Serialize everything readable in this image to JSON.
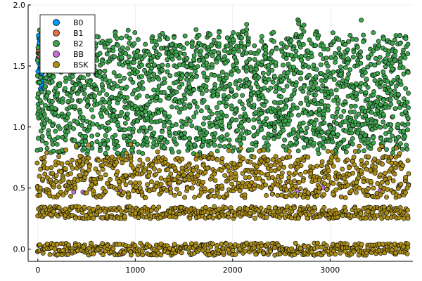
{
  "chart_data": {
    "type": "scatter",
    "title": "",
    "xlabel": "",
    "ylabel": "",
    "xlim": [
      -100,
      3850
    ],
    "ylim": [
      -0.1,
      2.0
    ],
    "xticks": [
      0,
      1000,
      2000,
      3000
    ],
    "xtick_labels": [
      "0",
      "1000",
      "2000",
      "3000"
    ],
    "yticks": [
      0.0,
      0.5,
      1.0,
      1.5,
      2.0
    ],
    "ytick_labels": [
      "0.0",
      "0.5",
      "1.0",
      "1.5",
      "2.0"
    ],
    "grid": true,
    "legend_position": "top-left",
    "x_range": [
      0,
      3800
    ],
    "series": [
      {
        "name": "B0",
        "color": "#009af9",
        "value_range": [
          1.3,
          1.8
        ]
      },
      {
        "name": "B1",
        "color": "#e26f46",
        "value_range": [
          1.55,
          1.65
        ]
      },
      {
        "name": "B2",
        "color": "#3da44d",
        "value_range": [
          0.7,
          1.95
        ]
      },
      {
        "name": "BB",
        "color": "#c271d2",
        "value_range": [
          0.45,
          0.55
        ]
      },
      {
        "name": "BSK",
        "color": "#ac8e18",
        "bands": [
          [
            -0.05,
            0.05
          ],
          [
            0.25,
            0.35
          ],
          [
            0.42,
            0.76
          ]
        ]
      }
    ]
  }
}
